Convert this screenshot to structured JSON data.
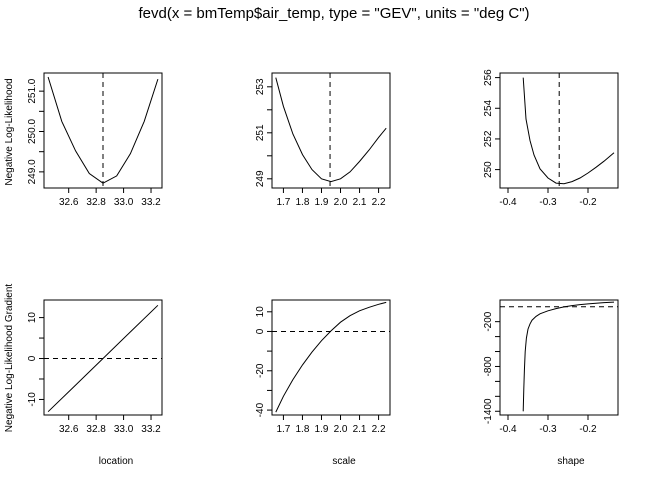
{
  "figure": {
    "title": "fevd(x = bmTemp$air_temp, type = \"GEV\", units = \"deg C\")",
    "ylabel_top": "Negative Log-Likelihood",
    "ylabel_bottom": "Negative Log-Likelihood Gradient",
    "xlabels": [
      "location",
      "scale",
      "shape"
    ]
  },
  "chart_data": [
    {
      "type": "line",
      "name": "likelihood-location",
      "x": [
        32.45,
        32.55,
        32.65,
        32.75,
        32.85,
        32.95,
        33.05,
        33.15,
        33.25
      ],
      "y": [
        251.35,
        250.25,
        249.52,
        248.96,
        248.72,
        248.9,
        249.45,
        250.25,
        251.3
      ],
      "xlim": [
        32.42,
        33.28
      ],
      "ylim": [
        248.6,
        251.45
      ],
      "xticks": [
        32.6,
        32.8,
        33.0,
        33.2
      ],
      "yticks": [
        249.0,
        249.5,
        250.0,
        250.5,
        251.0
      ],
      "ytick_labels": [
        "249.0",
        "",
        "250.0",
        "",
        "251.0"
      ],
      "ref_vertical": 32.85
    },
    {
      "type": "line",
      "name": "likelihood-scale",
      "x": [
        1.66,
        1.7,
        1.75,
        1.8,
        1.85,
        1.9,
        1.95,
        2.0,
        2.05,
        2.1,
        2.15,
        2.2,
        2.24
      ],
      "y": [
        253.4,
        252.15,
        250.95,
        250.05,
        249.4,
        249.0,
        248.88,
        249.0,
        249.3,
        249.75,
        250.25,
        250.8,
        251.2
      ],
      "xlim": [
        1.64,
        2.26
      ],
      "ylim": [
        248.6,
        253.6
      ],
      "xticks": [
        1.7,
        1.8,
        1.9,
        2.0,
        2.1,
        2.2
      ],
      "yticks": [
        249,
        250,
        251,
        252,
        253
      ],
      "ytick_labels": [
        "249",
        "",
        "251",
        "",
        "253"
      ],
      "ref_vertical": 1.945
    },
    {
      "type": "line",
      "name": "likelihood-shape",
      "x": [
        -0.362,
        -0.355,
        -0.345,
        -0.335,
        -0.32,
        -0.3,
        -0.28,
        -0.26,
        -0.24,
        -0.22,
        -0.2,
        -0.18,
        -0.16,
        -0.135
      ],
      "y": [
        256.0,
        253.3,
        251.9,
        250.95,
        250.05,
        249.45,
        249.12,
        249.08,
        249.22,
        249.45,
        249.78,
        250.15,
        250.55,
        251.1
      ],
      "xlim": [
        -0.42,
        -0.125
      ],
      "ylim": [
        248.8,
        256.3
      ],
      "xticks": [
        -0.4,
        -0.3,
        -0.2
      ],
      "yticks": [
        250,
        252,
        254,
        256
      ],
      "ytick_labels": [
        "250",
        "252",
        "254",
        "256"
      ],
      "ref_vertical": -0.272
    },
    {
      "type": "line",
      "name": "gradient-location",
      "x": [
        32.45,
        32.65,
        32.85,
        33.05,
        33.25
      ],
      "y": [
        -13.0,
        -6.5,
        0.0,
        6.5,
        13.0
      ],
      "xlim": [
        32.42,
        33.28
      ],
      "ylim": [
        -13.8,
        14.3
      ],
      "xticks": [
        32.6,
        32.8,
        33.0,
        33.2
      ],
      "yticks": [
        -10,
        -5,
        0,
        5,
        10
      ],
      "ytick_labels": [
        "-10",
        "",
        "0",
        "",
        "10"
      ],
      "ref_horizontal": 0
    },
    {
      "type": "line",
      "name": "gradient-scale",
      "x": [
        1.66,
        1.7,
        1.75,
        1.8,
        1.85,
        1.9,
        1.95,
        2.0,
        2.05,
        2.1,
        2.15,
        2.2,
        2.24
      ],
      "y": [
        -41.0,
        -33.0,
        -24.5,
        -17.0,
        -10.5,
        -4.7,
        0.3,
        4.7,
        8.0,
        10.5,
        12.3,
        13.8,
        14.8
      ],
      "xlim": [
        1.64,
        2.26
      ],
      "ylim": [
        -42.5,
        16.0
      ],
      "xticks": [
        1.7,
        1.8,
        1.9,
        2.0,
        2.1,
        2.2
      ],
      "yticks": [
        -40,
        -30,
        -20,
        -10,
        0,
        10
      ],
      "ytick_labels": [
        "-40",
        "",
        "-20",
        "",
        "0",
        "10"
      ],
      "ref_horizontal": 0
    },
    {
      "type": "line",
      "name": "gradient-shape",
      "x": [
        -0.362,
        -0.3605,
        -0.359,
        -0.357,
        -0.354,
        -0.35,
        -0.345,
        -0.34,
        -0.33,
        -0.32,
        -0.3,
        -0.28,
        -0.26,
        -0.24,
        -0.22,
        -0.2,
        -0.18,
        -0.16,
        -0.135
      ],
      "y": [
        -1400,
        -1100,
        -850,
        -600,
        -420,
        -300,
        -230,
        -180,
        -130,
        -95,
        -55,
        -25,
        -2,
        15,
        28,
        38,
        47,
        55,
        62
      ],
      "xlim": [
        -0.42,
        -0.125
      ],
      "ylim": [
        -1450,
        90
      ],
      "xticks": [
        -0.4,
        -0.3,
        -0.2
      ],
      "yticks": [
        -1400,
        -1200,
        -1000,
        -800,
        -600,
        -400,
        -200
      ],
      "ytick_labels": [
        "-1400",
        "",
        "",
        "-800",
        "",
        "",
        "-200"
      ],
      "ref_horizontal": 0
    }
  ]
}
